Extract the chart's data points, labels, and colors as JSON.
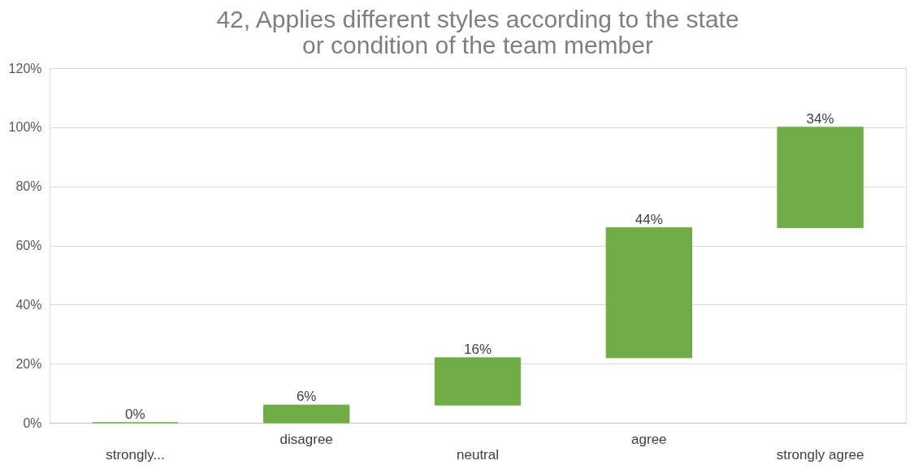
{
  "chart_data": {
    "type": "bar",
    "title": "42, Applies different styles according to the state or condition of the team member",
    "categories": [
      "strongly...",
      "disagree",
      "neutral",
      "agree",
      "strongly agree"
    ],
    "values": [
      0,
      6,
      16,
      44,
      34
    ],
    "base": [
      0,
      0,
      6,
      22,
      66
    ],
    "value_labels": [
      "0%",
      "6%",
      "16%",
      "44%",
      "34%"
    ],
    "color": "#70ad47",
    "ylim": [
      0,
      120
    ],
    "yticks": [
      {
        "value": 0,
        "label": "0%"
      },
      {
        "value": 20,
        "label": "20%"
      },
      {
        "value": 40,
        "label": "40%"
      },
      {
        "value": 60,
        "label": "60%"
      },
      {
        "value": 80,
        "label": "80%"
      },
      {
        "value": 100,
        "label": "100%"
      },
      {
        "value": 120,
        "label": "120%"
      }
    ],
    "grid": "y"
  }
}
